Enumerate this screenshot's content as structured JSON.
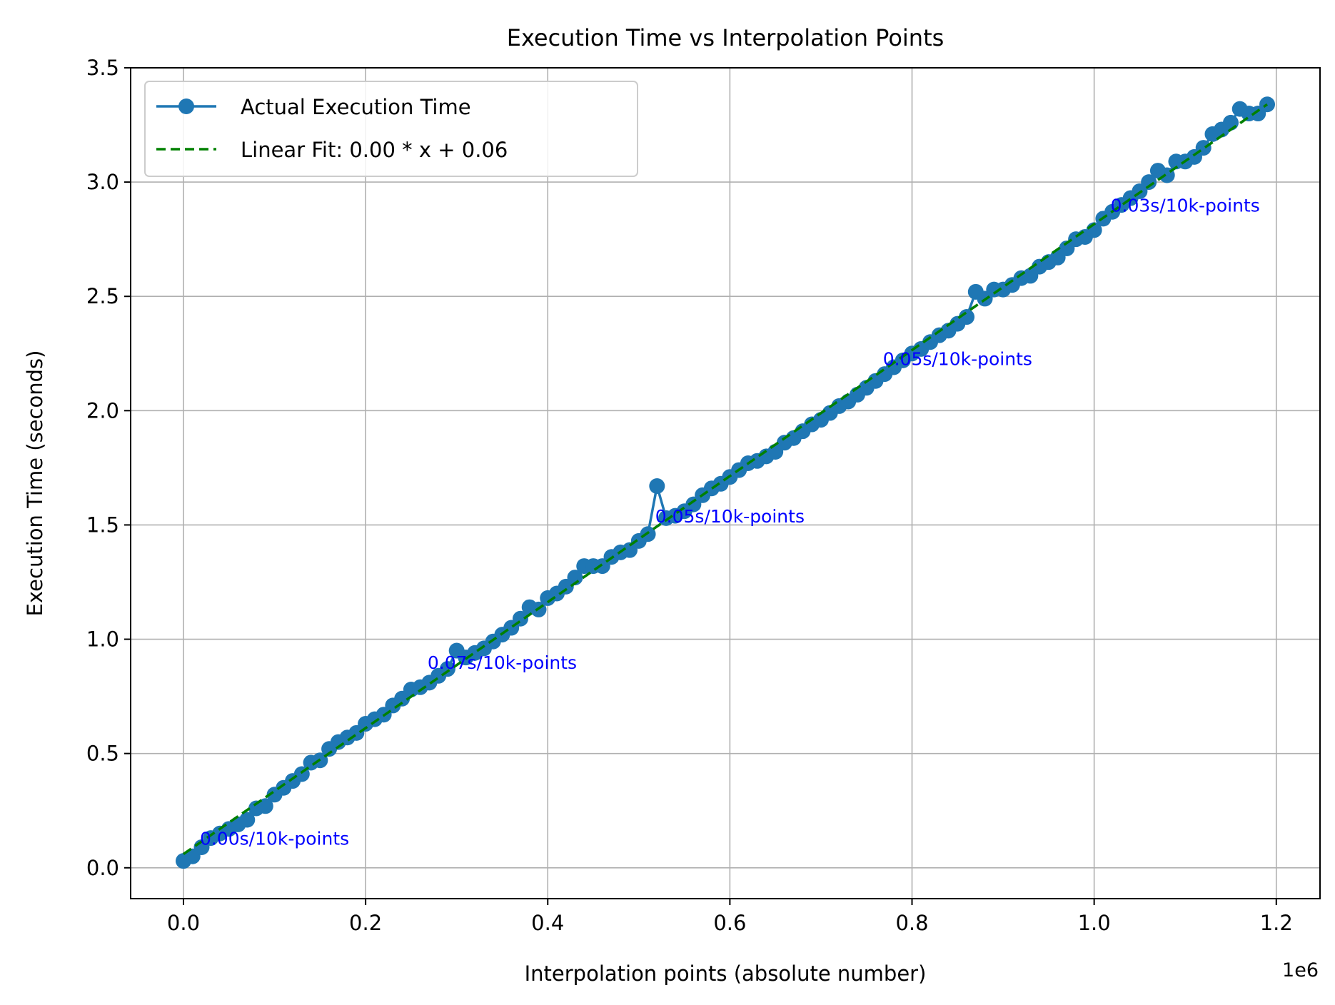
{
  "chart_data": {
    "type": "line",
    "title": "Execution Time vs Interpolation Points",
    "xlabel": "Interpolation points (absolute number)",
    "ylabel": "Execution Time (seconds)",
    "x_offset_label": "1e6",
    "xlim": [
      -0.058,
      1.248
    ],
    "ylim": [
      -0.135,
      3.5
    ],
    "x_ticks": [
      0.0,
      0.2,
      0.4,
      0.6,
      0.8,
      1.0,
      1.2
    ],
    "x_tick_labels": [
      "0.0",
      "0.2",
      "0.4",
      "0.6",
      "0.8",
      "1.0",
      "1.2"
    ],
    "y_ticks": [
      0.0,
      0.5,
      1.0,
      1.5,
      2.0,
      2.5,
      3.0,
      3.5
    ],
    "y_tick_labels": [
      "0.0",
      "0.5",
      "1.0",
      "1.5",
      "2.0",
      "2.5",
      "3.0",
      "3.5"
    ],
    "grid": true,
    "legend_position": "upper-left",
    "series": [
      {
        "name": "Actual Execution Time",
        "style": "line-with-circle-markers",
        "color": "#1f77b4",
        "x": [
          0.0,
          0.01,
          0.02,
          0.03,
          0.04,
          0.05,
          0.06,
          0.07,
          0.08,
          0.09,
          0.1,
          0.11,
          0.12,
          0.13,
          0.14,
          0.15,
          0.16,
          0.17,
          0.18,
          0.19,
          0.2,
          0.21,
          0.22,
          0.23,
          0.24,
          0.25,
          0.26,
          0.27,
          0.28,
          0.29,
          0.3,
          0.31,
          0.32,
          0.33,
          0.34,
          0.35,
          0.36,
          0.37,
          0.38,
          0.39,
          0.4,
          0.41,
          0.42,
          0.43,
          0.44,
          0.45,
          0.46,
          0.47,
          0.48,
          0.49,
          0.5,
          0.51,
          0.52,
          0.53,
          0.54,
          0.55,
          0.56,
          0.57,
          0.58,
          0.59,
          0.6,
          0.61,
          0.62,
          0.63,
          0.64,
          0.65,
          0.66,
          0.67,
          0.68,
          0.69,
          0.7,
          0.71,
          0.72,
          0.73,
          0.74,
          0.75,
          0.76,
          0.77,
          0.78,
          0.79,
          0.8,
          0.81,
          0.82,
          0.83,
          0.84,
          0.85,
          0.86,
          0.87,
          0.88,
          0.89,
          0.9,
          0.91,
          0.92,
          0.93,
          0.94,
          0.95,
          0.96,
          0.97,
          0.98,
          0.99,
          1.0,
          1.01,
          1.02,
          1.03,
          1.04,
          1.05,
          1.06,
          1.07,
          1.08,
          1.09,
          1.1,
          1.11,
          1.12,
          1.13,
          1.14,
          1.15,
          1.16,
          1.17,
          1.18,
          1.19
        ],
        "y": [
          0.03,
          0.05,
          0.09,
          0.13,
          0.15,
          0.17,
          0.19,
          0.21,
          0.26,
          0.27,
          0.32,
          0.35,
          0.38,
          0.41,
          0.46,
          0.47,
          0.52,
          0.55,
          0.57,
          0.59,
          0.63,
          0.65,
          0.67,
          0.71,
          0.74,
          0.78,
          0.79,
          0.81,
          0.84,
          0.87,
          0.95,
          0.92,
          0.94,
          0.96,
          0.99,
          1.02,
          1.05,
          1.09,
          1.14,
          1.13,
          1.18,
          1.2,
          1.23,
          1.27,
          1.32,
          1.32,
          1.32,
          1.36,
          1.38,
          1.39,
          1.43,
          1.46,
          1.67,
          1.53,
          1.54,
          1.56,
          1.59,
          1.63,
          1.66,
          1.68,
          1.71,
          1.74,
          1.77,
          1.78,
          1.8,
          1.82,
          1.86,
          1.88,
          1.91,
          1.94,
          1.96,
          1.99,
          2.02,
          2.04,
          2.07,
          2.1,
          2.13,
          2.16,
          2.19,
          2.22,
          2.25,
          2.27,
          2.3,
          2.33,
          2.35,
          2.38,
          2.41,
          2.52,
          2.49,
          2.53,
          2.53,
          2.55,
          2.58,
          2.59,
          2.63,
          2.65,
          2.67,
          2.71,
          2.75,
          2.76,
          2.79,
          2.84,
          2.87,
          2.9,
          2.93,
          2.96,
          3.0,
          3.05,
          3.03,
          3.09,
          3.09,
          3.11,
          3.15,
          3.21,
          3.23,
          3.26,
          3.32,
          3.3,
          3.3,
          3.34
        ]
      },
      {
        "name": "Linear Fit: 0.00 * x + 0.06",
        "style": "dashed-line",
        "color": "#008000",
        "x": [
          0.0,
          1.19
        ],
        "y": [
          0.06,
          3.34
        ]
      }
    ],
    "annotations": [
      {
        "text": "0.00s/10k-points",
        "x": 0.018,
        "y": 0.1
      },
      {
        "text": "0.07s/10k-points",
        "x": 0.268,
        "y": 0.87
      },
      {
        "text": "0.05s/10k-points",
        "x": 0.518,
        "y": 1.51
      },
      {
        "text": "0.05s/10k-points",
        "x": 0.768,
        "y": 2.2
      },
      {
        "text": "0.03s/10k-points",
        "x": 1.018,
        "y": 2.87
      }
    ],
    "annotation_color": "#0000ff"
  }
}
